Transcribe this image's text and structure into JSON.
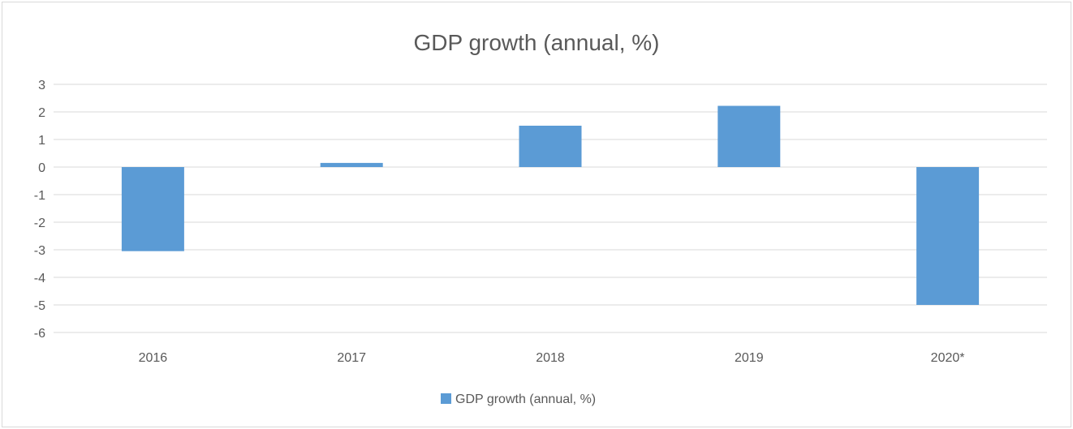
{
  "chart_data": {
    "type": "bar",
    "title": "GDP growth (annual, %)",
    "xlabel": "",
    "ylabel": "",
    "categories": [
      "2016",
      "2017",
      "2018",
      "2019",
      "2020*"
    ],
    "series": [
      {
        "name": "GDP growth (annual, %)",
        "values": [
          -3.05,
          0.15,
          1.5,
          2.22,
          -5.0
        ]
      }
    ],
    "ylim": [
      -6,
      3
    ],
    "yticks": [
      "3",
      "2",
      "1",
      "0",
      "-1",
      "-2",
      "-3",
      "-4",
      "-5",
      "-6"
    ],
    "grid": true,
    "legend_position": "bottom",
    "colors": {
      "bar": "#5b9bd5",
      "grid": "#d9d9d9",
      "text": "#595959"
    }
  }
}
